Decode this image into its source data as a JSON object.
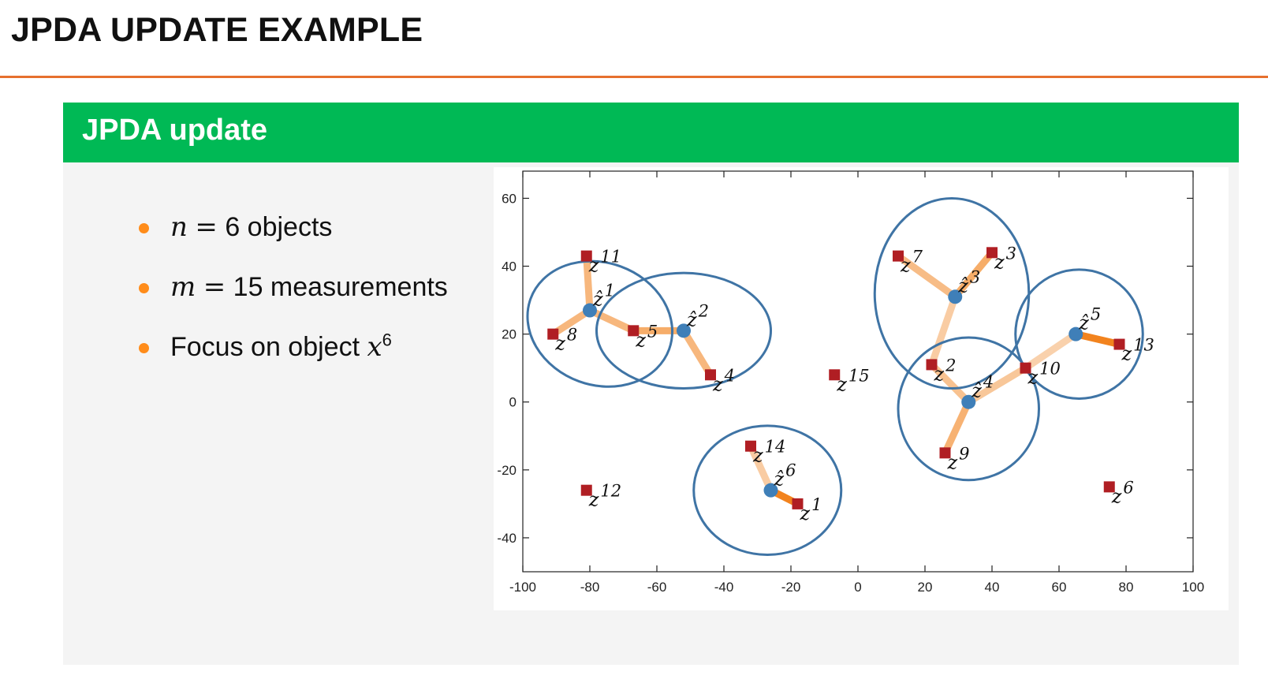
{
  "slide": {
    "title": "JPDA UPDATE EXAMPLE"
  },
  "block": {
    "title": "JPDA update"
  },
  "bullets": [
    {
      "var": "n",
      "op": "=",
      "value": "6",
      "text": " objects",
      "sup": ""
    },
    {
      "var": "m",
      "op": "=",
      "value": "15",
      "text": " measurements",
      "sup": ""
    },
    {
      "var": "",
      "op": "",
      "value": "",
      "text": "Focus on object ",
      "mathvar": "x",
      "sup": "6"
    }
  ],
  "colors": {
    "accent_rule": "#e6702e",
    "block_header": "#00b955",
    "bullet": "#ff8c1a",
    "ellipse": "#3f74a5",
    "object": "#3f7fb8",
    "measurement": "#b01e23",
    "assoc_strong": "#f58d2b",
    "assoc_weak": "#f5cda6"
  },
  "chart_data": {
    "type": "scatter",
    "xlim": [
      -100,
      100
    ],
    "ylim": [
      -50,
      68
    ],
    "xticks": [
      -100,
      -80,
      -60,
      -40,
      -20,
      0,
      20,
      40,
      60,
      80,
      100
    ],
    "yticks": [
      -40,
      -20,
      0,
      20,
      40,
      60
    ],
    "grid": false,
    "objects": [
      {
        "label": "1",
        "x": -80,
        "y": 27,
        "ellipse": {
          "cx": -77,
          "cy": 23,
          "rx": 22,
          "ry": 18,
          "rot_deg": 20
        }
      },
      {
        "label": "2",
        "x": -52,
        "y": 21,
        "ellipse": {
          "cx": -52,
          "cy": 21,
          "rx": 26,
          "ry": 17,
          "rot_deg": 0
        }
      },
      {
        "label": "3",
        "x": 29,
        "y": 31,
        "ellipse": {
          "cx": 28,
          "cy": 32,
          "rx": 23,
          "ry": 28,
          "rot_deg": 0
        }
      },
      {
        "label": "4",
        "x": 33,
        "y": 0,
        "ellipse": {
          "cx": 33,
          "cy": -2,
          "rx": 21,
          "ry": 21,
          "rot_deg": 0
        }
      },
      {
        "label": "5",
        "x": 65,
        "y": 20,
        "ellipse": {
          "cx": 66,
          "cy": 20,
          "rx": 19,
          "ry": 19,
          "rot_deg": 0
        }
      },
      {
        "label": "6",
        "x": -26,
        "y": -26,
        "ellipse": {
          "cx": -27,
          "cy": -26,
          "rx": 22,
          "ry": 19,
          "rot_deg": 0
        }
      }
    ],
    "measurements": [
      {
        "label": "1",
        "x": -18,
        "y": -30
      },
      {
        "label": "2",
        "x": 22,
        "y": 11
      },
      {
        "label": "3",
        "x": 40,
        "y": 44
      },
      {
        "label": "4",
        "x": -44,
        "y": 8
      },
      {
        "label": "5",
        "x": -67,
        "y": 21
      },
      {
        "label": "6",
        "x": 75,
        "y": -25
      },
      {
        "label": "7",
        "x": 12,
        "y": 43
      },
      {
        "label": "8",
        "x": -91,
        "y": 20
      },
      {
        "label": "9",
        "x": 26,
        "y": -15
      },
      {
        "label": "10",
        "x": 50,
        "y": 10
      },
      {
        "label": "11",
        "x": -81,
        "y": 43
      },
      {
        "label": "12",
        "x": -81,
        "y": -26
      },
      {
        "label": "13",
        "x": 78,
        "y": 17
      },
      {
        "label": "14",
        "x": -32,
        "y": -13
      },
      {
        "label": "15",
        "x": -7,
        "y": 8
      }
    ],
    "associations": [
      {
        "object": "1",
        "measurement": "11",
        "weight": 0.45
      },
      {
        "object": "1",
        "measurement": "8",
        "weight": 0.45
      },
      {
        "object": "1",
        "measurement": "5",
        "weight": 0.45
      },
      {
        "object": "2",
        "measurement": "5",
        "weight": 0.55
      },
      {
        "object": "2",
        "measurement": "4",
        "weight": 0.45
      },
      {
        "object": "3",
        "measurement": "7",
        "weight": 0.4
      },
      {
        "object": "3",
        "measurement": "3",
        "weight": 0.55
      },
      {
        "object": "3",
        "measurement": "2",
        "weight": 0.25
      },
      {
        "object": "4",
        "measurement": "2",
        "weight": 0.35
      },
      {
        "object": "4",
        "measurement": "9",
        "weight": 0.5
      },
      {
        "object": "4",
        "measurement": "10",
        "weight": 0.3
      },
      {
        "object": "5",
        "measurement": "10",
        "weight": 0.2
      },
      {
        "object": "5",
        "measurement": "13",
        "weight": 0.95
      },
      {
        "object": "6",
        "measurement": "14",
        "weight": 0.25
      },
      {
        "object": "6",
        "measurement": "1",
        "weight": 0.95
      }
    ]
  }
}
